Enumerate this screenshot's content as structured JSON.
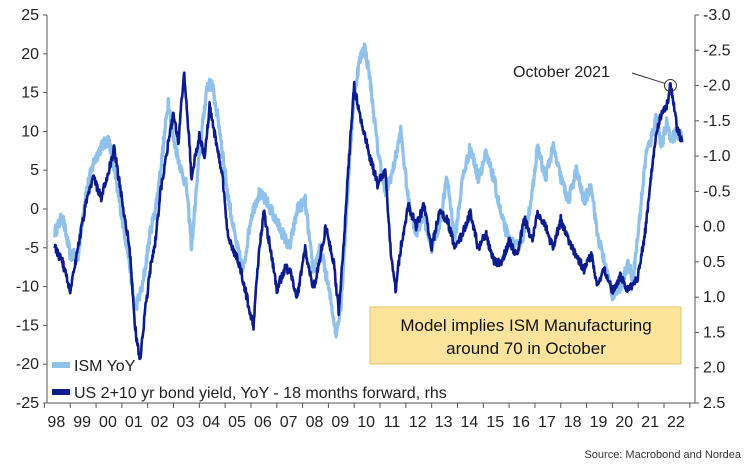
{
  "chart_data": {
    "type": "line",
    "left_axis": {
      "ylim": [
        -25,
        25
      ],
      "ticks": [
        25,
        20,
        15,
        10,
        5,
        0,
        -5,
        -10,
        -15,
        -20,
        -25
      ],
      "tick_labels": [
        "25",
        "20",
        "15",
        "10",
        "5",
        "0",
        "-5",
        "-10",
        "-15",
        "-20",
        "-25"
      ]
    },
    "right_axis": {
      "ylim": [
        -3.0,
        2.5
      ],
      "inverted": true,
      "ticks": [
        -3.0,
        -2.5,
        -2.0,
        -1.5,
        -1.0,
        -0.5,
        0.0,
        0.5,
        1.0,
        1.5,
        2.0,
        2.5
      ],
      "tick_labels": [
        "-3.0",
        "-2.5",
        "-2.0",
        "-1.5",
        "-1.0",
        "-0.5",
        "0.0",
        "0.5",
        "1.0",
        "1.5",
        "2.0",
        "2.5"
      ]
    },
    "x_axis": {
      "xlim": [
        1997.6,
        2022.7
      ],
      "ticks": [
        1998,
        1999,
        2000,
        2001,
        2002,
        2003,
        2004,
        2005,
        2006,
        2007,
        2008,
        2009,
        2010,
        2011,
        2012,
        2013,
        2014,
        2015,
        2016,
        2017,
        2018,
        2019,
        2020,
        2021,
        2022
      ],
      "tick_labels": [
        "98",
        "99",
        "00",
        "01",
        "02",
        "03",
        "04",
        "05",
        "06",
        "07",
        "08",
        "09",
        "10",
        "11",
        "12",
        "13",
        "14",
        "15",
        "16",
        "17",
        "18",
        "19",
        "20",
        "21",
        "22"
      ]
    },
    "grid": false,
    "legend_placement": "bottom-left",
    "series": [
      {
        "name": "ISM YoY",
        "axis": "left",
        "color": "#8fc1ea",
        "points": [
          [
            1997.9,
            -3
          ],
          [
            1998.2,
            -1
          ],
          [
            1998.5,
            -6
          ],
          [
            1998.8,
            -6
          ],
          [
            1999.1,
            2
          ],
          [
            1999.4,
            6
          ],
          [
            1999.7,
            8
          ],
          [
            2000.0,
            9
          ],
          [
            2000.2,
            5
          ],
          [
            2000.5,
            -1
          ],
          [
            2000.8,
            -7
          ],
          [
            2001.0,
            -13
          ],
          [
            2001.3,
            -10
          ],
          [
            2001.6,
            -3
          ],
          [
            2001.8,
            0
          ],
          [
            2002.0,
            5
          ],
          [
            2002.3,
            14
          ],
          [
            2002.5,
            9
          ],
          [
            2002.8,
            5
          ],
          [
            2003.0,
            3
          ],
          [
            2003.2,
            -5
          ],
          [
            2003.5,
            7
          ],
          [
            2003.8,
            16
          ],
          [
            2004.0,
            16
          ],
          [
            2004.3,
            10
          ],
          [
            2004.6,
            2
          ],
          [
            2004.9,
            -4
          ],
          [
            2005.2,
            -8
          ],
          [
            2005.5,
            -1
          ],
          [
            2005.8,
            2
          ],
          [
            2006.1,
            1
          ],
          [
            2006.4,
            -1
          ],
          [
            2006.7,
            -3
          ],
          [
            2007.0,
            -5
          ],
          [
            2007.3,
            0
          ],
          [
            2007.6,
            1
          ],
          [
            2007.9,
            -8
          ],
          [
            2008.2,
            -5
          ],
          [
            2008.5,
            -10
          ],
          [
            2008.8,
            -16
          ],
          [
            2009.0,
            -12
          ],
          [
            2009.3,
            5
          ],
          [
            2009.5,
            15
          ],
          [
            2009.7,
            19
          ],
          [
            2009.9,
            21
          ],
          [
            2010.1,
            17
          ],
          [
            2010.4,
            8
          ],
          [
            2010.7,
            2
          ],
          [
            2011.0,
            5
          ],
          [
            2011.3,
            10
          ],
          [
            2011.6,
            1
          ],
          [
            2011.9,
            -3
          ],
          [
            2012.2,
            -1
          ],
          [
            2012.5,
            -5
          ],
          [
            2012.8,
            -2
          ],
          [
            2013.1,
            4
          ],
          [
            2013.4,
            -4
          ],
          [
            2013.7,
            4
          ],
          [
            2014.0,
            8
          ],
          [
            2014.3,
            4
          ],
          [
            2014.6,
            7
          ],
          [
            2014.9,
            4
          ],
          [
            2015.2,
            -1
          ],
          [
            2015.5,
            -4
          ],
          [
            2015.8,
            -5
          ],
          [
            2016.1,
            -3
          ],
          [
            2016.4,
            2
          ],
          [
            2016.6,
            8
          ],
          [
            2016.9,
            4
          ],
          [
            2017.2,
            8
          ],
          [
            2017.5,
            4
          ],
          [
            2017.8,
            1
          ],
          [
            2018.1,
            5
          ],
          [
            2018.4,
            1
          ],
          [
            2018.7,
            3
          ],
          [
            2018.9,
            -3
          ],
          [
            2019.2,
            -7
          ],
          [
            2019.5,
            -11
          ],
          [
            2019.8,
            -10
          ],
          [
            2020.1,
            -7
          ],
          [
            2020.3,
            -9
          ],
          [
            2020.5,
            -3
          ],
          [
            2020.8,
            7
          ],
          [
            2021.0,
            9
          ],
          [
            2021.2,
            12
          ],
          [
            2021.4,
            8
          ],
          [
            2021.6,
            11
          ],
          [
            2021.8,
            9
          ],
          [
            2022.0,
            10
          ],
          [
            2022.2,
            9
          ]
        ]
      },
      {
        "name": "US 2+10 yr bond yield, YoY - 18 months forward, rhs",
        "axis": "right",
        "color": "#0c1c8c",
        "points": [
          [
            1997.9,
            0.3
          ],
          [
            1998.2,
            0.5
          ],
          [
            1998.5,
            0.9
          ],
          [
            1998.8,
            0.3
          ],
          [
            1999.1,
            -0.3
          ],
          [
            1999.4,
            -0.7
          ],
          [
            1999.7,
            -0.4
          ],
          [
            2000.0,
            -0.8
          ],
          [
            2000.2,
            -1.1
          ],
          [
            2000.5,
            -0.4
          ],
          [
            2000.8,
            0.3
          ],
          [
            2001.0,
            1.4
          ],
          [
            2001.2,
            1.9
          ],
          [
            2001.4,
            1.2
          ],
          [
            2001.6,
            0.6
          ],
          [
            2001.8,
            0.2
          ],
          [
            2002.0,
            -0.5
          ],
          [
            2002.3,
            -1.2
          ],
          [
            2002.5,
            -1.6
          ],
          [
            2002.7,
            -1.2
          ],
          [
            2002.9,
            -2.2
          ],
          [
            2003.0,
            -1.8
          ],
          [
            2003.2,
            -0.7
          ],
          [
            2003.5,
            -1.3
          ],
          [
            2003.7,
            -1.0
          ],
          [
            2003.9,
            -1.7
          ],
          [
            2004.1,
            -1.3
          ],
          [
            2004.4,
            -0.7
          ],
          [
            2004.6,
            0.1
          ],
          [
            2004.9,
            0.4
          ],
          [
            2005.1,
            0.6
          ],
          [
            2005.4,
            1.1
          ],
          [
            2005.6,
            1.4
          ],
          [
            2005.8,
            0.4
          ],
          [
            2006.0,
            -0.2
          ],
          [
            2006.3,
            0.4
          ],
          [
            2006.5,
            0.9
          ],
          [
            2006.8,
            0.6
          ],
          [
            2007.0,
            0.6
          ],
          [
            2007.3,
            1.0
          ],
          [
            2007.6,
            0.3
          ],
          [
            2007.9,
            0.9
          ],
          [
            2008.1,
            0.6
          ],
          [
            2008.4,
            0.0
          ],
          [
            2008.7,
            0.5
          ],
          [
            2008.9,
            1.2
          ],
          [
            2009.1,
            0.2
          ],
          [
            2009.3,
            -1.0
          ],
          [
            2009.5,
            -2.0
          ],
          [
            2009.7,
            -1.6
          ],
          [
            2009.9,
            -1.3
          ],
          [
            2010.1,
            -1.0
          ],
          [
            2010.4,
            -0.6
          ],
          [
            2010.7,
            -0.8
          ],
          [
            2010.9,
            0.3
          ],
          [
            2011.1,
            0.9
          ],
          [
            2011.3,
            0.3
          ],
          [
            2011.6,
            -0.3
          ],
          [
            2011.9,
            0.0
          ],
          [
            2012.2,
            -0.3
          ],
          [
            2012.5,
            0.3
          ],
          [
            2012.8,
            -0.2
          ],
          [
            2013.1,
            -0.1
          ],
          [
            2013.4,
            0.3
          ],
          [
            2013.7,
            0.1
          ],
          [
            2014.0,
            -0.2
          ],
          [
            2014.3,
            0.3
          ],
          [
            2014.6,
            0.1
          ],
          [
            2014.9,
            0.5
          ],
          [
            2015.2,
            0.5
          ],
          [
            2015.5,
            0.2
          ],
          [
            2015.8,
            0.4
          ],
          [
            2016.1,
            -0.1
          ],
          [
            2016.4,
            0.2
          ],
          [
            2016.6,
            -0.2
          ],
          [
            2016.9,
            0.0
          ],
          [
            2017.2,
            0.3
          ],
          [
            2017.5,
            -0.1
          ],
          [
            2017.8,
            0.2
          ],
          [
            2018.1,
            0.4
          ],
          [
            2018.4,
            0.6
          ],
          [
            2018.7,
            0.4
          ],
          [
            2018.9,
            0.8
          ],
          [
            2019.2,
            0.6
          ],
          [
            2019.5,
            0.9
          ],
          [
            2019.8,
            0.7
          ],
          [
            2020.1,
            0.9
          ],
          [
            2020.3,
            0.8
          ],
          [
            2020.5,
            0.7
          ],
          [
            2020.8,
            0.0
          ],
          [
            2021.0,
            -0.7
          ],
          [
            2021.2,
            -1.3
          ],
          [
            2021.4,
            -1.6
          ],
          [
            2021.6,
            -1.7
          ],
          [
            2021.75,
            -2.0
          ],
          [
            2021.9,
            -1.7
          ],
          [
            2022.0,
            -1.4
          ],
          [
            2022.2,
            -1.2
          ]
        ]
      }
    ],
    "annotations": [
      {
        "text": "October 2021",
        "x": 2021.75,
        "y_right": -2.0
      },
      {
        "box_text_line1": "Model implies ISM Manufacturing",
        "box_text_line2": "around 70 in October",
        "box_color": "#fce49c"
      }
    ],
    "source": "Source: Macrobond and Nordea"
  }
}
